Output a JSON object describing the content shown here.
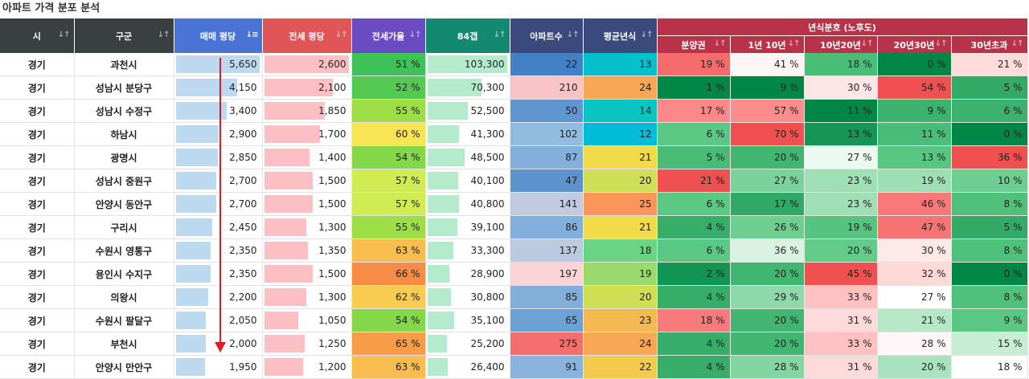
{
  "title": "아파트 가격 분포 분석",
  "group_header": "년식분호 (노후도)",
  "columns": [
    {
      "label": "시",
      "color": "#3a3f42"
    },
    {
      "label": "구군",
      "color": "#3a3f42"
    },
    {
      "label": "매매 평당",
      "color": "#4a74d4"
    },
    {
      "label": "전세 평당",
      "color": "#e05558"
    },
    {
      "label": "전세가율",
      "color": "#6a4bc3"
    },
    {
      "label": "84갭",
      "color": "#138a70"
    },
    {
      "label": "아파트수",
      "color": "#3b4a7c"
    },
    {
      "label": "평균년식",
      "color": "#3b4a7c"
    }
  ],
  "age_columns": [
    {
      "label": "분양권"
    },
    {
      "label": "1년 10년"
    },
    {
      "label": "10년20년"
    },
    {
      "label": "20년30년"
    },
    {
      "label": "30년초과"
    }
  ],
  "age_header_color": "#b8334a",
  "sort_icon": "↓↑",
  "sort_active_icon": "↓≡",
  "rows": [
    {
      "si": "경기",
      "gu": "과천시",
      "sale": "5,650",
      "jeonse": "2,600",
      "ratio": "51 %",
      "gap": "103,300",
      "count": "22",
      "age": "13",
      "a1": "19 %",
      "a2": "41 %",
      "a3": "18 %",
      "a4": "0 %",
      "a5": "21 %"
    },
    {
      "si": "경기",
      "gu": "성남시 분당구",
      "sale": "4,150",
      "jeonse": "2,100",
      "ratio": "52 %",
      "gap": "70,300",
      "count": "210",
      "age": "24",
      "a1": "1 %",
      "a2": "9 %",
      "a3": "30 %",
      "a4": "54 %",
      "a5": "5 %"
    },
    {
      "si": "경기",
      "gu": "성남시 수정구",
      "sale": "3,400",
      "jeonse": "1,850",
      "ratio": "55 %",
      "gap": "52,500",
      "count": "50",
      "age": "14",
      "a1": "17 %",
      "a2": "57 %",
      "a3": "11 %",
      "a4": "9 %",
      "a5": "6 %"
    },
    {
      "si": "경기",
      "gu": "하남시",
      "sale": "2,900",
      "jeonse": "1,700",
      "ratio": "60 %",
      "gap": "41,300",
      "count": "102",
      "age": "12",
      "a1": "6 %",
      "a2": "70 %",
      "a3": "13 %",
      "a4": "11 %",
      "a5": "0 %"
    },
    {
      "si": "경기",
      "gu": "광명시",
      "sale": "2,850",
      "jeonse": "1,400",
      "ratio": "54 %",
      "gap": "48,500",
      "count": "87",
      "age": "21",
      "a1": "5 %",
      "a2": "20 %",
      "a3": "27 %",
      "a4": "13 %",
      "a5": "36 %"
    },
    {
      "si": "경기",
      "gu": "성남시 중원구",
      "sale": "2,700",
      "jeonse": "1,500",
      "ratio": "57 %",
      "gap": "40,100",
      "count": "47",
      "age": "20",
      "a1": "21 %",
      "a2": "27 %",
      "a3": "23 %",
      "a4": "19 %",
      "a5": "10 %"
    },
    {
      "si": "경기",
      "gu": "안양시 동안구",
      "sale": "2,700",
      "jeonse": "1,500",
      "ratio": "57 %",
      "gap": "40,800",
      "count": "141",
      "age": "25",
      "a1": "6 %",
      "a2": "17 %",
      "a3": "23 %",
      "a4": "46 %",
      "a5": "8 %"
    },
    {
      "si": "경기",
      "gu": "구리시",
      "sale": "2,450",
      "jeonse": "1,300",
      "ratio": "55 %",
      "gap": "39,100",
      "count": "86",
      "age": "21",
      "a1": "4 %",
      "a2": "26 %",
      "a3": "19 %",
      "a4": "47 %",
      "a5": "5 %"
    },
    {
      "si": "경기",
      "gu": "수원시 영통구",
      "sale": "2,350",
      "jeonse": "1,350",
      "ratio": "63 %",
      "gap": "33,300",
      "count": "137",
      "age": "18",
      "a1": "6 %",
      "a2": "36 %",
      "a3": "20 %",
      "a4": "30 %",
      "a5": "8 %"
    },
    {
      "si": "경기",
      "gu": "용인시 수지구",
      "sale": "2,350",
      "jeonse": "1,500",
      "ratio": "66 %",
      "gap": "28,900",
      "count": "197",
      "age": "19",
      "a1": "2 %",
      "a2": "20 %",
      "a3": "45 %",
      "a4": "32 %",
      "a5": "0 %"
    },
    {
      "si": "경기",
      "gu": "의왕시",
      "sale": "2,200",
      "jeonse": "1,300",
      "ratio": "62 %",
      "gap": "30,800",
      "count": "85",
      "age": "20",
      "a1": "4 %",
      "a2": "29 %",
      "a3": "33 %",
      "a4": "27 %",
      "a5": "8 %"
    },
    {
      "si": "경기",
      "gu": "수원시 팔달구",
      "sale": "2,050",
      "jeonse": "1,050",
      "ratio": "54 %",
      "gap": "35,100",
      "count": "65",
      "age": "23",
      "a1": "18 %",
      "a2": "20 %",
      "a3": "31 %",
      "a4": "21 %",
      "a5": "9 %"
    },
    {
      "si": "경기",
      "gu": "부천시",
      "sale": "2,000",
      "jeonse": "1,250",
      "ratio": "65 %",
      "gap": "25,200",
      "count": "275",
      "age": "24",
      "a1": "4 %",
      "a2": "20 %",
      "a3": "33 %",
      "a4": "28 %",
      "a5": "15 %"
    },
    {
      "si": "경기",
      "gu": "안양시 만안구",
      "sale": "1,950",
      "jeonse": "1,200",
      "ratio": "63 %",
      "gap": "26,400",
      "count": "91",
      "age": "22",
      "a1": "4 %",
      "a2": "28 %",
      "a3": "31 %",
      "a4": "20 %",
      "a5": "18 %"
    }
  ]
}
